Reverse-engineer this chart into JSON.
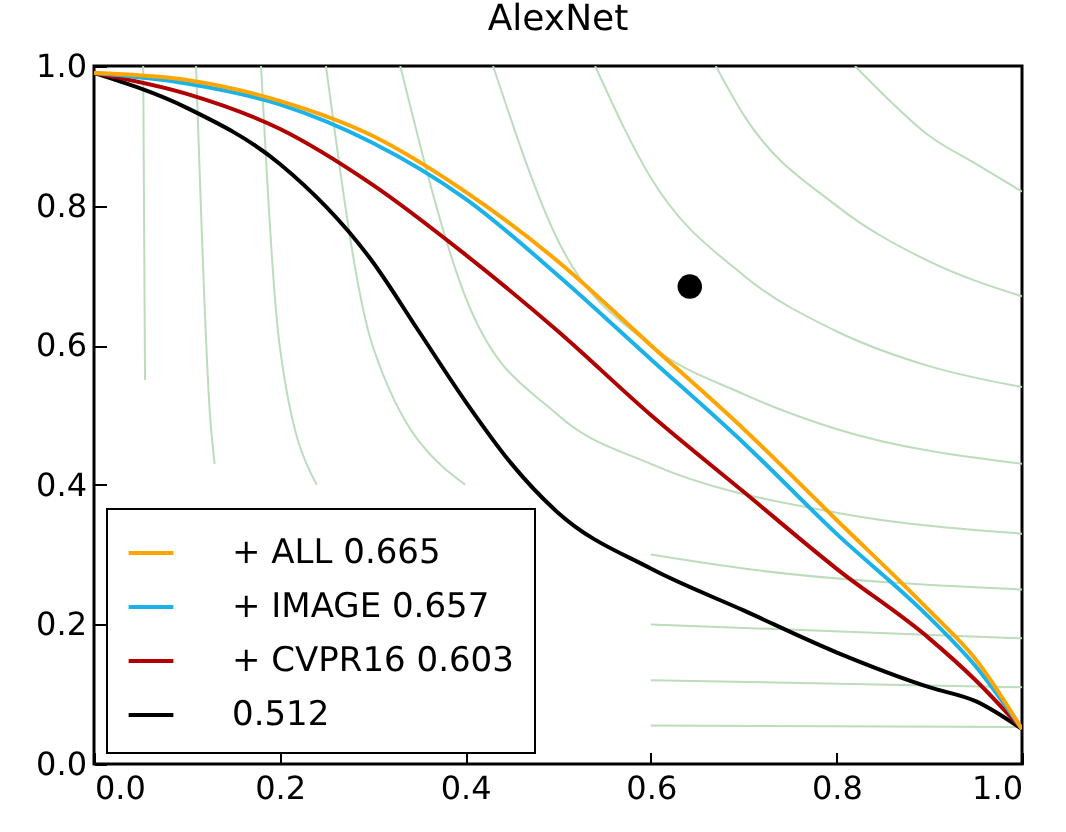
{
  "chart_data": {
    "type": "line",
    "title": "AlexNet",
    "xlim": [
      0,
      1
    ],
    "ylim": [
      0,
      1
    ],
    "xticks": [
      {
        "value": 0,
        "label": "0.0"
      },
      {
        "value": 0.2,
        "label": "0.2"
      },
      {
        "value": 0.4,
        "label": "0.4"
      },
      {
        "value": 0.6,
        "label": "0.6"
      },
      {
        "value": 0.8,
        "label": "0.8"
      },
      {
        "value": 1,
        "label": "1.0"
      }
    ],
    "yticks": [
      {
        "value": 0,
        "label": "0.0"
      },
      {
        "value": 0.2,
        "label": "0.2"
      },
      {
        "value": 0.4,
        "label": "0.4"
      },
      {
        "value": 0.6,
        "label": "0.6"
      },
      {
        "value": 0.8,
        "label": "0.8"
      },
      {
        "value": 1,
        "label": "1.0"
      }
    ],
    "grid": false,
    "legend": "bottom left",
    "line_style": "solid",
    "series": [
      {
        "name": "+ ALL  0.665",
        "color": "#ffa500",
        "x": [
          0,
          0.1,
          0.2,
          0.3,
          0.4,
          0.5,
          0.6,
          0.7,
          0.8,
          0.9,
          0.95,
          1
        ],
        "values": [
          0.99,
          0.98,
          0.95,
          0.9,
          0.82,
          0.72,
          0.6,
          0.48,
          0.35,
          0.22,
          0.15,
          0.05
        ]
      },
      {
        "name": "+ IMAGE  0.657",
        "color": "#1ab2e8",
        "x": [
          0,
          0.1,
          0.2,
          0.3,
          0.4,
          0.5,
          0.6,
          0.7,
          0.8,
          0.9,
          0.95,
          1
        ],
        "values": [
          0.99,
          0.975,
          0.945,
          0.89,
          0.81,
          0.7,
          0.58,
          0.46,
          0.33,
          0.21,
          0.14,
          0.05
        ]
      },
      {
        "name": "+ CVPR16 0.603",
        "color": "#b00000",
        "x": [
          0,
          0.1,
          0.2,
          0.3,
          0.4,
          0.5,
          0.6,
          0.7,
          0.8,
          0.9,
          0.95,
          1
        ],
        "values": [
          0.99,
          0.96,
          0.91,
          0.83,
          0.73,
          0.62,
          0.5,
          0.39,
          0.28,
          0.18,
          0.12,
          0.05
        ]
      },
      {
        "name": "0.512",
        "color": "#000000",
        "x": [
          0,
          0.1,
          0.2,
          0.3,
          0.35,
          0.4,
          0.45,
          0.5,
          0.6,
          0.7,
          0.8,
          0.9,
          0.95,
          1
        ],
        "values": [
          0.99,
          0.94,
          0.86,
          0.72,
          0.62,
          0.52,
          0.43,
          0.36,
          0.28,
          0.22,
          0.16,
          0.11,
          0.09,
          0.05
        ]
      },
      {
        "type": "scatter",
        "color": "#000000",
        "marker": "circle",
        "x": [
          0.642
        ],
        "values": [
          0.684
        ]
      },
      {
        "color": "#bcdcbc",
        "x": [
          0.053,
          0.055,
          0.06,
          0.08,
          0.1,
          0.2,
          0.5,
          0.6,
          1
        ],
        "values": [
          1,
          0.55,
          null,
          null,
          null,
          null,
          null,
          0.055,
          0.053
        ]
      },
      {
        "color": "#bcdcbc",
        "x": [
          0.11,
          0.125,
          0.13,
          0.15,
          0.2,
          0.3,
          0.5,
          0.6,
          1
        ],
        "values": [
          1,
          0.5,
          0.43,
          null,
          null,
          null,
          null,
          0.12,
          0.11
        ]
      },
      {
        "color": "#bcdcbc",
        "x": [
          0.18,
          0.2,
          0.24,
          0.25,
          0.3,
          0.4,
          0.6,
          1
        ],
        "values": [
          1,
          0.6,
          0.4,
          null,
          null,
          null,
          0.2,
          0.18
        ]
      },
      {
        "color": "#bcdcbc",
        "x": [
          0.25,
          0.3,
          0.4,
          0.5,
          0.6,
          0.7,
          1
        ],
        "values": [
          1,
          0.6,
          0.4,
          null,
          0.3,
          0.28,
          0.25
        ]
      },
      {
        "color": "#bcdcbc",
        "x": [
          0.33,
          0.4,
          0.5,
          0.6,
          0.8,
          1
        ],
        "values": [
          1,
          0.67,
          0.5,
          0.43,
          0.36,
          0.33
        ]
      },
      {
        "color": "#bcdcbc",
        "x": [
          0.43,
          0.5,
          0.6,
          0.7,
          0.8,
          1
        ],
        "values": [
          1,
          0.75,
          0.6,
          0.53,
          0.48,
          0.43
        ]
      },
      {
        "color": "#bcdcbc",
        "x": [
          0.54,
          0.6,
          0.7,
          0.8,
          0.9,
          1
        ],
        "values": [
          1,
          0.84,
          0.7,
          0.62,
          0.57,
          0.54
        ]
      },
      {
        "color": "#bcdcbc",
        "x": [
          0.67,
          0.7,
          0.8,
          0.9,
          1
        ],
        "values": [
          1,
          0.93,
          0.8,
          0.72,
          0.67
        ]
      },
      {
        "color": "#bcdcbc",
        "x": [
          0.82,
          0.85,
          0.9,
          0.95,
          1
        ],
        "values": [
          1,
          0.96,
          0.9,
          0.86,
          0.82
        ]
      }
    ]
  }
}
